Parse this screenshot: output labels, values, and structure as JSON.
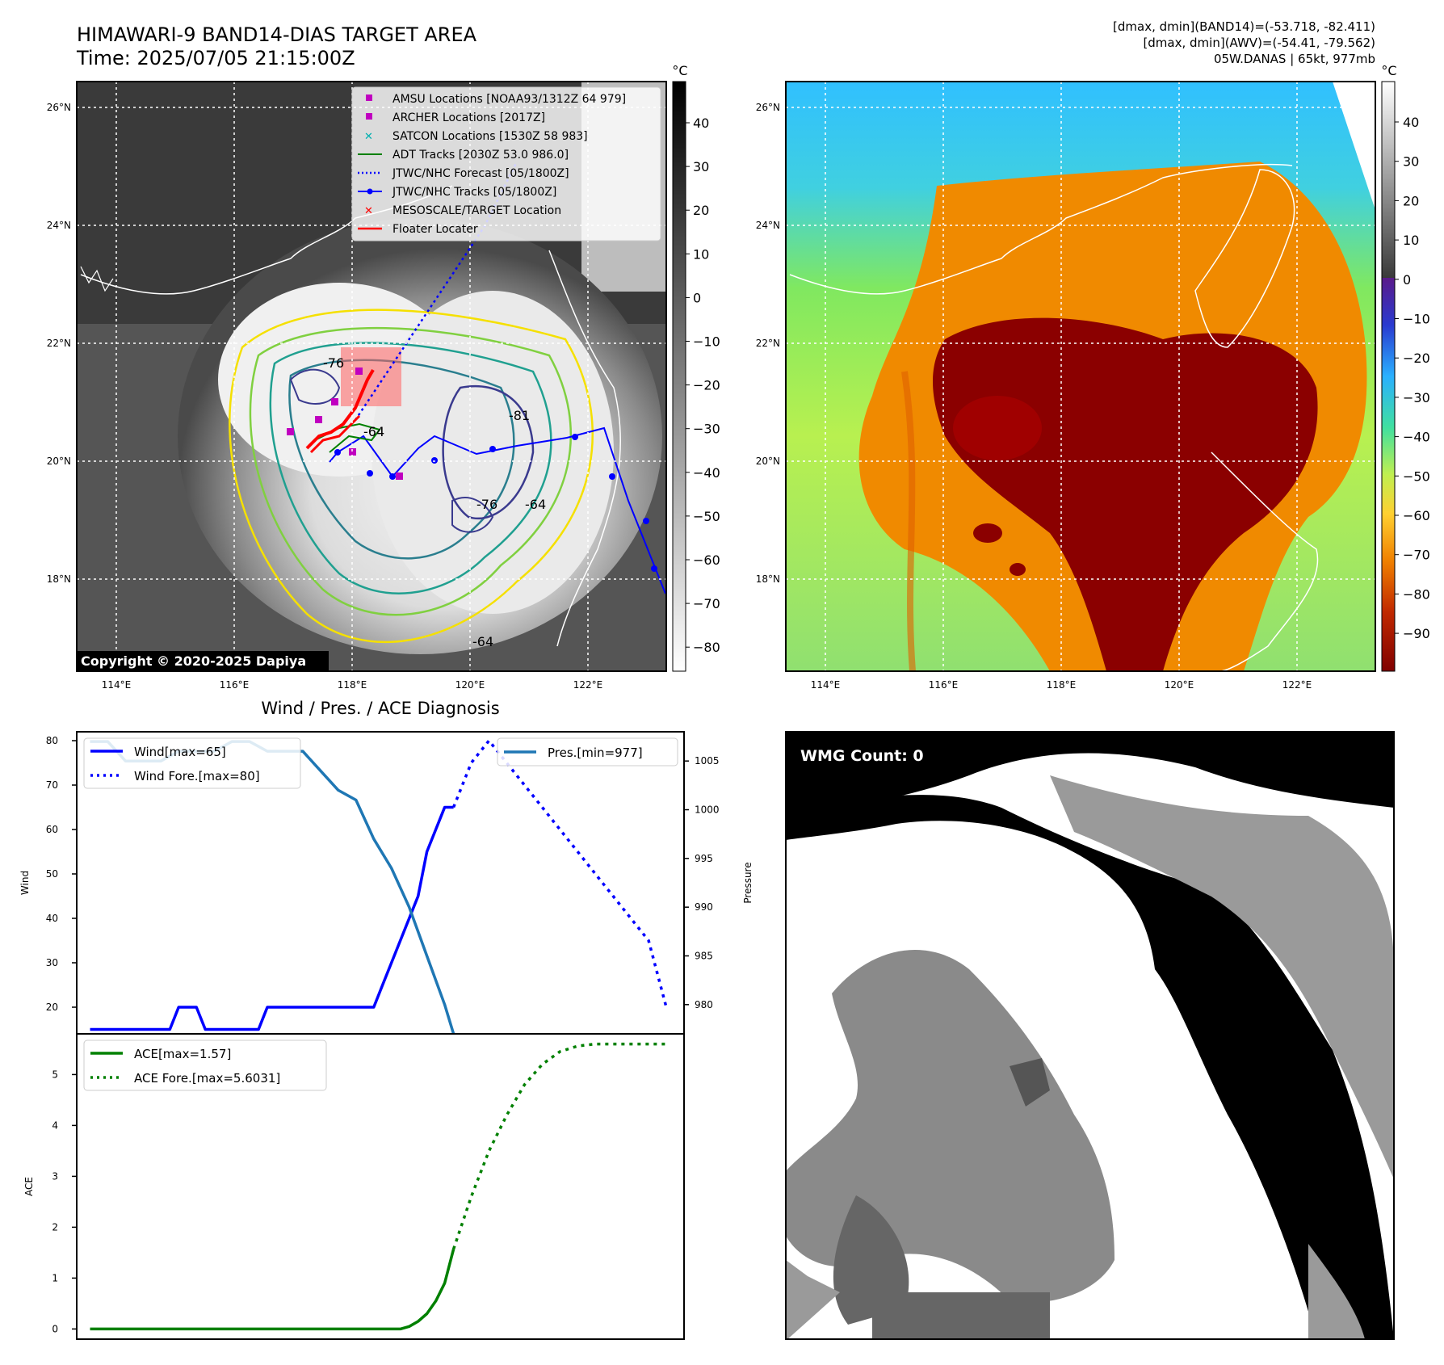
{
  "header": {
    "title": "HIMAWARI-9 BAND14-DIAS TARGET AREA",
    "time": "Time: 2025/07/05 21:15:00Z",
    "info_line1": "[dmax, dmin](BAND14)=(-53.718, -82.411)",
    "info_line2": "[dmax, dmin](AWV)=(-54.41, -79.562)",
    "info_line3": "05W.DANAS | 65kt, 977mb"
  },
  "map": {
    "lat_labels": [
      "26°N",
      "24°N",
      "22°N",
      "20°N",
      "18°N"
    ],
    "lon_labels": [
      "114°E",
      "116°E",
      "118°E",
      "120°E",
      "122°E"
    ],
    "copyright": "Copyright © 2020-2025 Dapiya",
    "contour_labels": [
      "-76",
      "-64",
      "-81",
      "-76",
      "-64",
      "-64"
    ],
    "legend": [
      {
        "label": "AMSU Locations [NOAA93/1312Z 64 979]",
        "color": "#c000c0",
        "marker": "square"
      },
      {
        "label": "ARCHER Locations [2017Z]",
        "color": "#c000c0",
        "marker": "square"
      },
      {
        "label": "SATCON Locations [1530Z 58 983]",
        "color": "#00b0b0",
        "marker": "x"
      },
      {
        "label": "ADT Tracks [2030Z 53.0 986.0]",
        "color": "#008000",
        "marker": "line"
      },
      {
        "label": "JTWC/NHC Forecast [05/1800Z]",
        "color": "#0000ff",
        "marker": "dotted"
      },
      {
        "label": "JTWC/NHC Tracks [05/1800Z]",
        "color": "#0000ff",
        "marker": "line-dot"
      },
      {
        "label": "MESOSCALE/TARGET Location",
        "color": "#ff0000",
        "marker": "x"
      },
      {
        "label": "Floater Locater",
        "color": "#ff0000",
        "marker": "line"
      }
    ]
  },
  "colorbar_gray": {
    "unit": "°C",
    "ticks": [
      "40",
      "30",
      "20",
      "10",
      "0",
      "−10",
      "−20",
      "−30",
      "−40",
      "−50",
      "−60",
      "−70",
      "−80"
    ]
  },
  "colorbar_color": {
    "unit": "°C",
    "ticks": [
      "40",
      "30",
      "20",
      "10",
      "0",
      "−10",
      "−20",
      "−30",
      "−40",
      "−50",
      "−60",
      "−70",
      "−80",
      "−90"
    ]
  },
  "diagnosis": {
    "title": "Wind / Pres. / ACE Diagnosis",
    "wind_ylabel": "Wind",
    "pres_ylabel": "Pressure",
    "ace_ylabel": "ACE",
    "wind_ticks": [
      "80",
      "70",
      "60",
      "50",
      "40",
      "30",
      "20"
    ],
    "pres_ticks": [
      "1005",
      "1000",
      "995",
      "990",
      "985",
      "980"
    ],
    "ace_ticks": [
      "5",
      "4",
      "3",
      "2",
      "1",
      "0"
    ],
    "legend_wind": "Wind[max=65]",
    "legend_wind_fore": "Wind Fore.[max=80]",
    "legend_pres": "Pres.[min=977]",
    "legend_ace": "ACE[max=1.57]",
    "legend_ace_fore": "ACE Fore.[max=5.6031]"
  },
  "wmg": {
    "label": "WMG Count: 0"
  },
  "chart_data": [
    {
      "type": "line",
      "name": "wind",
      "ylabel": "Wind",
      "ylim": [
        14,
        82
      ],
      "series": [
        {
          "name": "Wind[max=65]",
          "color": "#0000ff",
          "style": "solid",
          "x": [
            0,
            1,
            2,
            3,
            4,
            5,
            6,
            7,
            8,
            9,
            10,
            11,
            12,
            13,
            14,
            15,
            16,
            17,
            18,
            19,
            20,
            21,
            22,
            23,
            24,
            25,
            26,
            27,
            28,
            29,
            30,
            31,
            32,
            33,
            34,
            35,
            36,
            37,
            38,
            39,
            40,
            41
          ],
          "values": [
            15,
            15,
            15,
            15,
            15,
            15,
            15,
            15,
            15,
            15,
            20,
            20,
            20,
            15,
            15,
            15,
            15,
            15,
            15,
            15,
            20,
            20,
            20,
            20,
            20,
            20,
            20,
            20,
            20,
            20,
            20,
            20,
            20,
            25,
            30,
            35,
            40,
            45,
            55,
            60,
            65,
            65
          ]
        },
        {
          "name": "Wind Fore.[max=80]",
          "color": "#0000ff",
          "style": "dotted",
          "x": [
            41,
            43,
            45,
            47,
            49,
            51,
            53,
            55,
            57,
            59,
            61,
            63,
            65
          ],
          "values": [
            65,
            75,
            80,
            75,
            70,
            65,
            60,
            55,
            50,
            45,
            40,
            35,
            20
          ]
        }
      ]
    },
    {
      "type": "line",
      "name": "pressure",
      "ylabel": "Pressure",
      "ylim": [
        977,
        1008
      ],
      "series": [
        {
          "name": "Pres.[min=977]",
          "color": "#1f77b4",
          "style": "solid",
          "x": [
            0,
            2,
            4,
            6,
            8,
            10,
            12,
            14,
            16,
            18,
            20,
            22,
            24,
            26,
            28,
            30,
            32,
            34,
            36,
            38,
            40,
            41
          ],
          "values": [
            1007,
            1007,
            1005,
            1005,
            1005,
            1006,
            1006,
            1006,
            1007,
            1007,
            1006,
            1006,
            1006,
            1004,
            1002,
            1001,
            997,
            994,
            990,
            985,
            980,
            977
          ]
        }
      ]
    },
    {
      "type": "line",
      "name": "ace",
      "ylabel": "ACE",
      "ylim": [
        -0.2,
        5.8
      ],
      "series": [
        {
          "name": "ACE[max=1.57]",
          "color": "#008000",
          "style": "solid",
          "x": [
            0,
            5,
            10,
            15,
            20,
            25,
            30,
            32,
            33,
            34,
            35,
            36,
            37,
            38,
            39,
            40,
            41
          ],
          "values": [
            0,
            0,
            0,
            0,
            0,
            0,
            0,
            0,
            0,
            0,
            0,
            0.05,
            0.15,
            0.3,
            0.55,
            0.9,
            1.57
          ]
        },
        {
          "name": "ACE Fore.[max=5.6031]",
          "color": "#008000",
          "style": "dotted",
          "x": [
            41,
            43,
            45,
            47,
            49,
            51,
            53,
            55,
            57,
            59,
            61,
            63,
            65
          ],
          "values": [
            1.57,
            2.6,
            3.5,
            4.2,
            4.8,
            5.2,
            5.45,
            5.56,
            5.6,
            5.6,
            5.6,
            5.6,
            5.6
          ]
        }
      ]
    }
  ]
}
